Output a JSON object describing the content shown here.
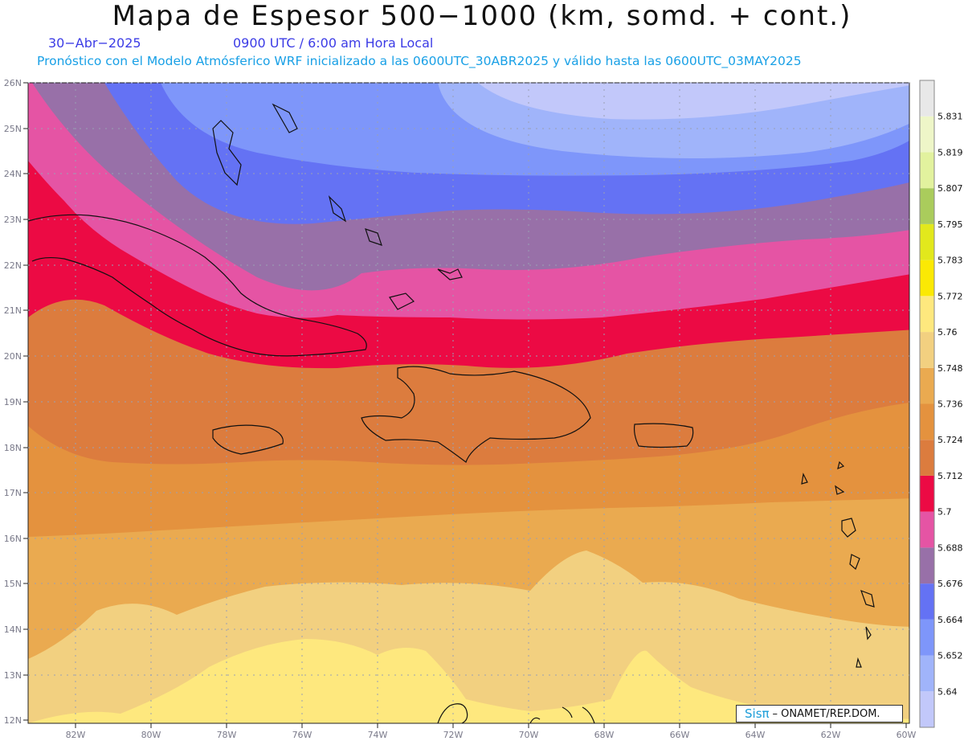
{
  "header": {
    "title": "Mapa de Espesor 500−1000 (km, somd. + cont.)",
    "date": "30−Abr−2025",
    "time": "0900 UTC / 6:00 am Hora Local",
    "description": "Pronóstico con el Modelo Atmósferico WRF inicializado a las 0600UTC_30ABR2025 y válido hasta las  0600UTC_03MAY2025"
  },
  "colors": {
    "date_time": "#3c3ce6",
    "description": "#19a0e6",
    "grid": "#9aa0b4",
    "tick_label": "#7a7a8a"
  },
  "map": {
    "lat_labels": [
      "26N",
      "25N",
      "24N",
      "23N",
      "22N",
      "21N",
      "20N",
      "19N",
      "18N",
      "17N",
      "16N",
      "15N",
      "14N",
      "13N",
      "12N"
    ],
    "lon_labels": [
      "82W",
      "80W",
      "78W",
      "76W",
      "74W",
      "72W",
      "70W",
      "68W",
      "66W",
      "64W",
      "62W",
      "60W"
    ]
  },
  "legend": {
    "levels": [
      "5.64",
      "5.652",
      "5.664",
      "5.676",
      "5.688",
      "5.7",
      "5.712",
      "5.724",
      "5.736",
      "5.748",
      "5.76",
      "5.772",
      "5.783",
      "5.795",
      "5.807",
      "5.819",
      "5.831"
    ],
    "colors": [
      "#c2c8fa",
      "#a0b4fa",
      "#7e96fa",
      "#6472f4",
      "#9870a8",
      "#e554a4",
      "#ec0a44",
      "#dc7c3e",
      "#e4923e",
      "#eaaa50",
      "#f2d080",
      "#fee87e",
      "#fbe904",
      "#e2e81c",
      "#aacc5c",
      "#e2f29e",
      "#eef6c8",
      "#e8e8e8"
    ]
  },
  "credit": {
    "sis": "Sisπ",
    "org": "– ONAMET/REP.DOM."
  }
}
